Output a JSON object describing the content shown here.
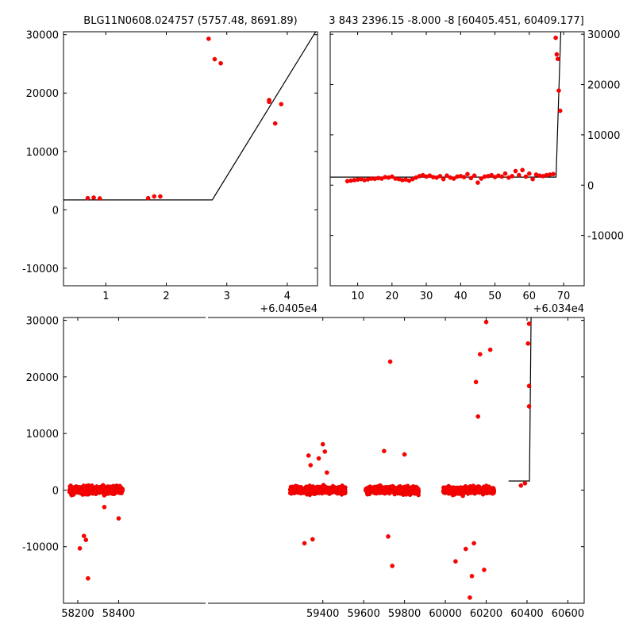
{
  "chart_data": [
    {
      "type": "scatter",
      "title": "BLG11N0608.024757 (5757.48, 8691.89)",
      "offset_label": "+6.0405e4",
      "xlim": [
        0.3,
        4.5
      ],
      "ylim": [
        -13000,
        30500
      ],
      "xticks": [
        1,
        2,
        3,
        4
      ],
      "yticks": [
        -10000,
        0,
        10000,
        20000,
        30000
      ],
      "series": [
        {
          "kind": "points",
          "x": [
            0.7,
            0.8,
            0.9,
            1.7,
            1.8,
            1.9,
            2.7,
            2.8,
            2.9,
            3.7,
            3.7,
            3.8,
            3.9
          ],
          "y": [
            2000,
            2100,
            1950,
            2000,
            2300,
            2300,
            29300,
            25800,
            25100,
            18800,
            18500,
            14800,
            18100
          ]
        },
        {
          "kind": "line",
          "x": [
            0.3,
            2.76,
            4.5
          ],
          "y": [
            1700,
            1700,
            31000
          ]
        }
      ]
    },
    {
      "type": "scatter",
      "title": "3 843 2396.15 -8.000 -8 [60405.451, 60409.177]",
      "offset_label": "+6.034e4",
      "xlim": [
        2,
        76
      ],
      "ylim": [
        -20000,
        30500
      ],
      "xticks": [
        10,
        20,
        30,
        40,
        50,
        60,
        70
      ],
      "yticks": [
        -10000,
        0,
        10000,
        20000,
        30000
      ],
      "series": [
        {
          "kind": "points",
          "x": [
            7,
            8,
            9,
            10,
            11,
            12,
            13,
            14,
            15,
            16,
            17,
            18,
            19,
            20,
            21,
            22,
            23,
            24,
            25,
            26,
            27,
            28,
            29,
            30,
            31,
            32,
            33,
            34,
            35,
            36,
            37,
            38,
            39,
            40,
            41,
            42,
            43,
            44,
            45,
            46,
            47,
            48,
            49,
            50,
            51,
            52,
            53,
            54,
            55,
            56,
            57,
            58,
            59,
            60,
            61,
            62,
            63,
            64,
            65,
            66,
            67,
            67.7,
            68,
            68.3,
            68.6,
            69
          ],
          "y": [
            800,
            900,
            1000,
            1100,
            1200,
            1000,
            1150,
            1300,
            1250,
            1400,
            1300,
            1600,
            1500,
            1700,
            1300,
            1200,
            1000,
            1100,
            900,
            1200,
            1500,
            1800,
            2000,
            1700,
            1900,
            1600,
            1500,
            1800,
            1200,
            1900,
            1500,
            1300,
            1700,
            1800,
            1600,
            2200,
            1400,
            1900,
            500,
            1300,
            1700,
            1800,
            2000,
            1600,
            1900,
            1700,
            2300,
            1500,
            1800,
            2800,
            2000,
            3000,
            1700,
            2300,
            1200,
            2100,
            1900,
            1800,
            2000,
            2100,
            2200,
            29300,
            26000,
            25100,
            18800,
            14800
          ]
        },
        {
          "kind": "line",
          "x": [
            2,
            67.8,
            69.2
          ],
          "y": [
            1600,
            1600,
            31000
          ]
        }
      ]
    },
    {
      "type": "scatter",
      "title": "",
      "xlim": [
        58130,
        60680
      ],
      "ylim": [
        -20000,
        30500
      ],
      "xticks": [
        58200,
        58400,
        59400,
        59600,
        59800,
        60000,
        60200,
        60400,
        60600
      ],
      "yticks": [
        -10000,
        0,
        10000,
        20000,
        30000
      ],
      "broken_axis": [
        58430,
        59230
      ],
      "series": [
        {
          "kind": "points",
          "x": [
            58210,
            58230,
            58240,
            58250,
            58330,
            58400,
            59310,
            59330,
            59340,
            59350,
            59380,
            59400,
            59410,
            59420,
            59700,
            59720,
            59730,
            59740,
            59800,
            60050,
            60100,
            60120,
            60130,
            60140,
            60150,
            60160,
            60170,
            60190,
            60200,
            60220,
            60370,
            60390,
            60405,
            60410,
            60410,
            60410
          ],
          "y": [
            -10300,
            -8100,
            -8800,
            -15600,
            -3000,
            -5000,
            -9400,
            6100,
            4400,
            -8700,
            5600,
            8100,
            6800,
            3100,
            6900,
            -8200,
            22700,
            -13400,
            6300,
            -12600,
            -10400,
            -19000,
            -15200,
            -9400,
            19100,
            13000,
            24000,
            -14100,
            29700,
            24800,
            800,
            1200,
            25900,
            29400,
            18400,
            14800
          ]
        },
        {
          "kind": "band",
          "x_ranges": [
            [
              58160,
              58420
            ],
            [
              59240,
              59510
            ],
            [
              59610,
              59870
            ],
            [
              59990,
              60240
            ]
          ],
          "y_range": [
            -3000,
            3000
          ]
        },
        {
          "kind": "line",
          "x": [
            60310,
            60412,
            60420
          ],
          "y": [
            1600,
            1600,
            31000
          ]
        }
      ]
    }
  ]
}
